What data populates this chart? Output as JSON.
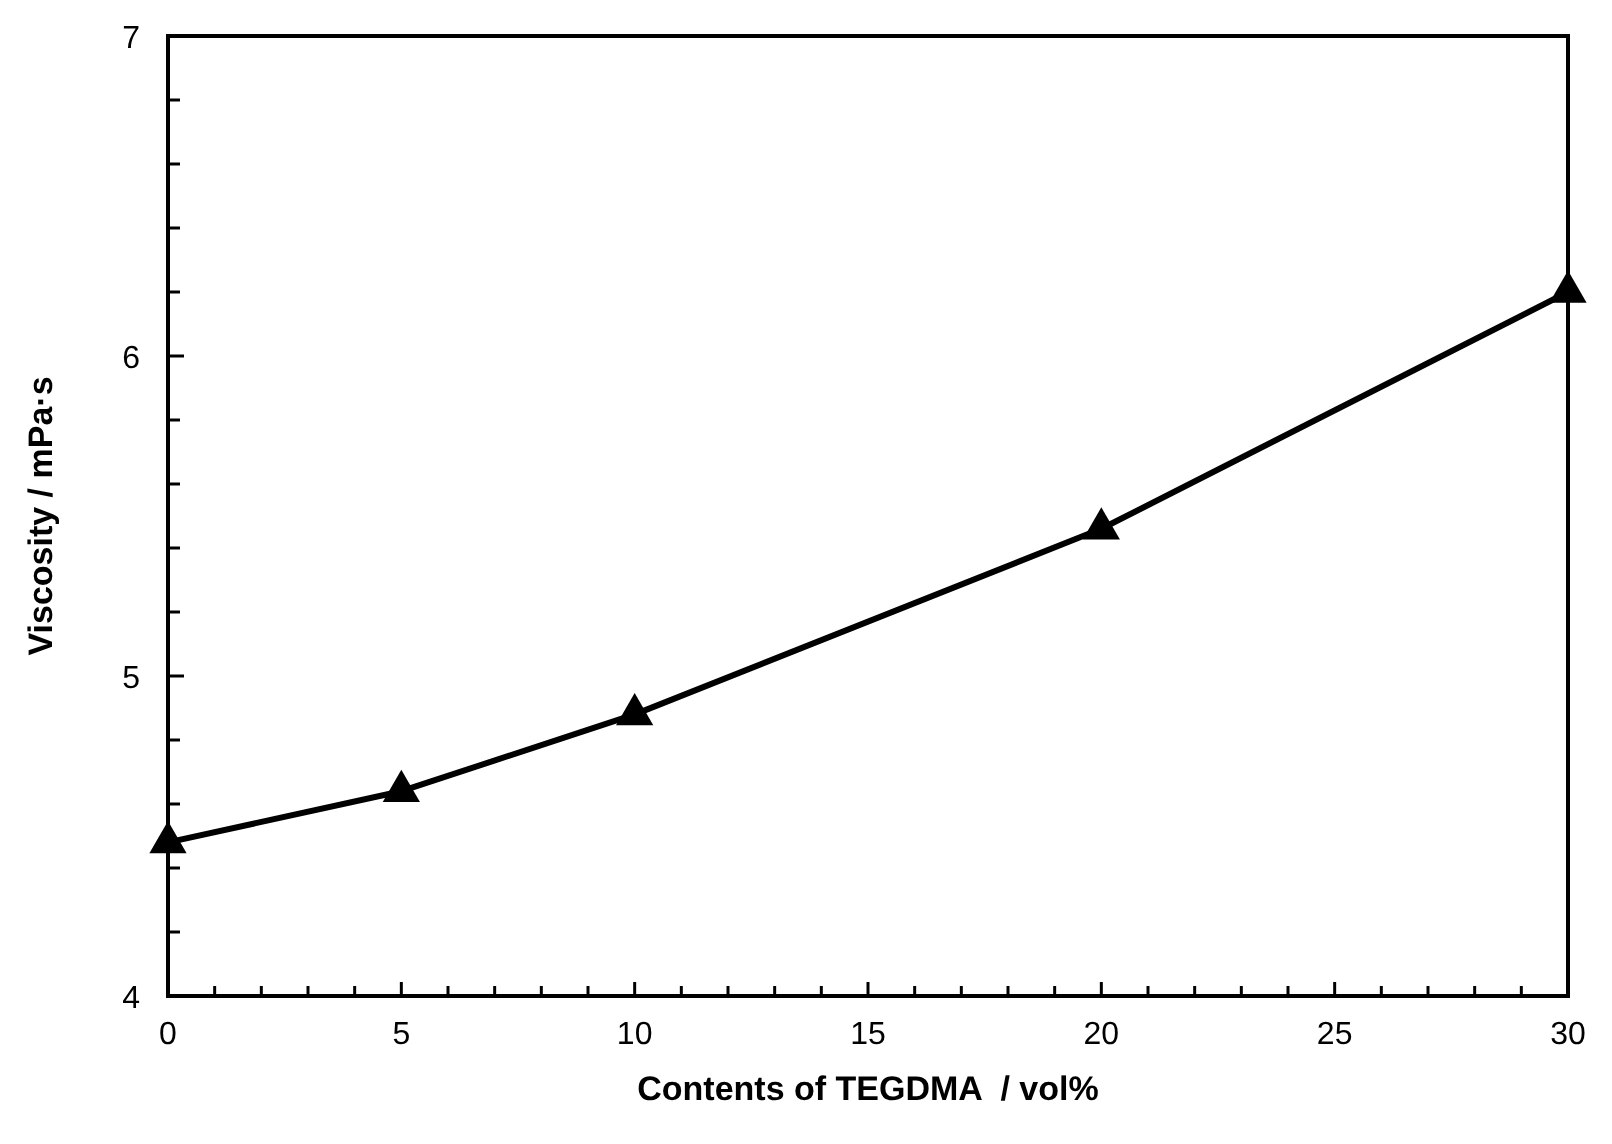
{
  "chart_data": {
    "type": "line",
    "xlabel": "Contents of TEGDMA  / vol%",
    "ylabel": "Viscosity / mPa·s",
    "x": [
      0,
      5,
      10,
      20,
      30
    ],
    "series": [
      {
        "color": "#000000",
        "values": [
          4.48,
          4.64,
          4.88,
          5.46,
          6.2
        ]
      }
    ],
    "xlim": [
      0,
      30
    ],
    "ylim": [
      4,
      7
    ],
    "xticks": [
      0,
      {
        "value": 1,
        "label": null
      },
      {
        "value": 2,
        "label": null
      },
      {
        "value": 3,
        "label": null
      },
      {
        "value": 4,
        "label": null
      },
      5,
      {
        "value": 6,
        "label": null
      },
      {
        "value": 7,
        "label": null
      },
      {
        "value": 8,
        "label": null
      },
      {
        "value": 9,
        "label": null
      },
      10,
      {
        "value": 11,
        "label": null
      },
      {
        "value": 12,
        "label": null
      },
      {
        "value": 13,
        "label": null
      },
      {
        "value": 14,
        "label": null
      },
      15,
      {
        "value": 16,
        "label": null
      },
      {
        "value": 17,
        "label": null
      },
      {
        "value": 18,
        "label": null
      },
      {
        "value": 19,
        "label": null
      },
      20,
      {
        "value": 21,
        "label": null
      },
      {
        "value": 22,
        "label": null
      },
      {
        "value": 23,
        "label": null
      },
      {
        "value": 24,
        "label": null
      },
      25,
      {
        "value": 26,
        "label": null
      },
      {
        "value": 27,
        "label": null
      },
      {
        "value": 28,
        "label": null
      },
      {
        "value": 29,
        "label": null
      },
      30
    ],
    "yticks": [
      4,
      {
        "value": 4.2,
        "label": null
      },
      {
        "value": 4.4,
        "label": null
      },
      {
        "value": 4.6,
        "label": null
      },
      {
        "value": 4.8,
        "label": null
      },
      5,
      {
        "value": 5.2,
        "label": null
      },
      {
        "value": 5.4,
        "label": null
      },
      {
        "value": 5.6,
        "label": null
      },
      {
        "value": 5.8,
        "label": null
      },
      6,
      {
        "value": 6.2,
        "label": null
      },
      {
        "value": 6.4,
        "label": null
      },
      {
        "value": 6.6,
        "label": null
      },
      {
        "value": 6.8,
        "label": null
      },
      7
    ],
    "marker": "triangle",
    "line_style": "solid",
    "grid": false
  }
}
